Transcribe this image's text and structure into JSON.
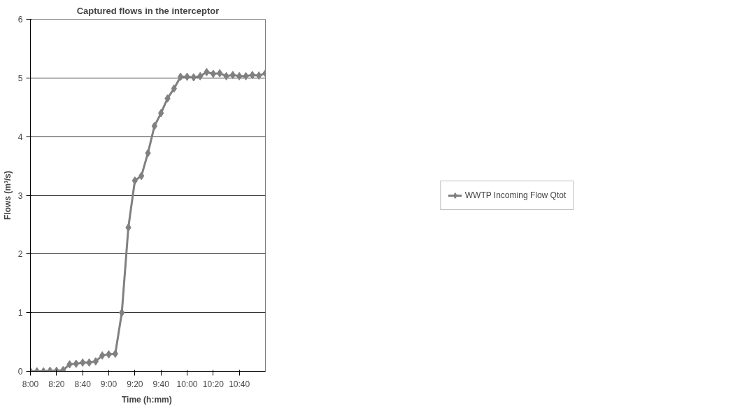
{
  "chart_data": {
    "type": "line",
    "title": "Captured flows in the interceptor",
    "xlabel": "Time  (h:mm)",
    "ylabel": "Flows (m³/s)",
    "x": [
      8,
      8.0833,
      8.1667,
      8.25,
      8.3333,
      8.4167,
      8.5,
      8.5833,
      8.6667,
      8.75,
      8.8333,
      8.9167,
      9,
      9.0833,
      9.1667,
      9.25,
      9.3333,
      9.4167,
      9.5,
      9.5833,
      9.6667,
      9.75,
      9.8333,
      9.9167,
      10,
      10.0833,
      10.1667,
      10.25,
      10.3333,
      10.4167,
      10.5,
      10.5833,
      10.6667,
      10.75,
      10.8333,
      10.9167,
      11
    ],
    "series": [
      {
        "name": "WWTP Incoming Flow Qtot",
        "color": "#808080",
        "values": [
          0,
          0,
          0,
          0.01,
          0.01,
          0.02,
          0.12,
          0.13,
          0.15,
          0.15,
          0.17,
          0.27,
          0.29,
          0.3,
          1.0,
          2.45,
          3.25,
          3.33,
          3.72,
          4.18,
          4.4,
          4.65,
          4.82,
          5.02,
          5.02,
          5.01,
          5.03,
          5.1,
          5.07,
          5.08,
          5.03,
          5.05,
          5.03,
          5.03,
          5.05,
          5.04,
          5.08
        ]
      }
    ],
    "xlim": [
      8,
      11
    ],
    "ylim": [
      0,
      6
    ],
    "xticks": [
      {
        "value": 8,
        "label": "8:00"
      },
      {
        "value": 8.3333,
        "label": "8:20"
      },
      {
        "value": 8.6667,
        "label": "8:40"
      },
      {
        "value": 9,
        "label": "9:00"
      },
      {
        "value": 9.3333,
        "label": "9:20"
      },
      {
        "value": 9.6667,
        "label": "9:40"
      },
      {
        "value": 10,
        "label": "10:00"
      },
      {
        "value": 10.3333,
        "label": "10:20"
      },
      {
        "value": 10.6667,
        "label": "10:40"
      }
    ],
    "yticks": [
      0,
      1,
      2,
      3,
      4,
      5,
      6
    ],
    "grid": "y",
    "legend": "right",
    "marker": "diamond",
    "line_style": "solid"
  }
}
